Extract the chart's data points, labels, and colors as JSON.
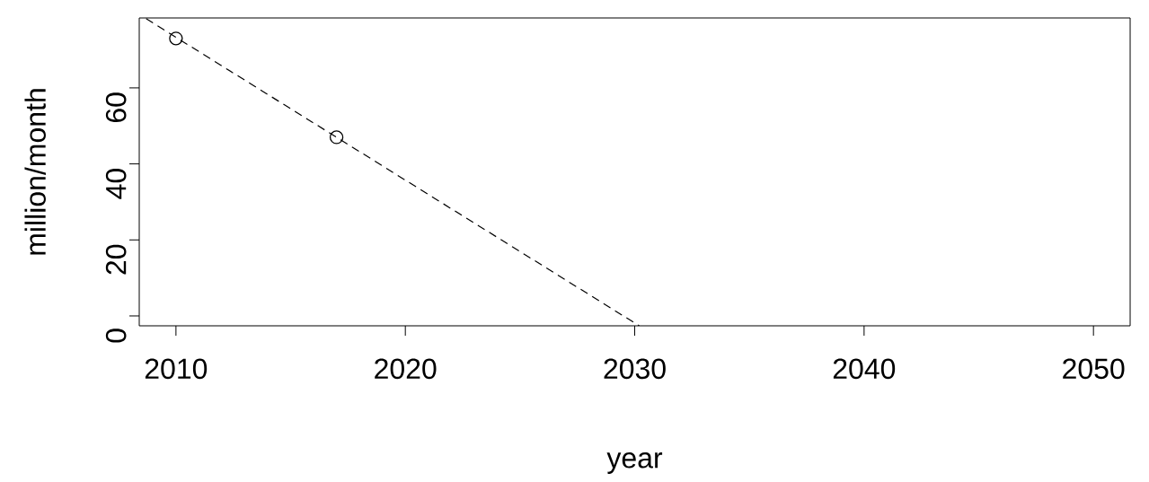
{
  "chart_data": {
    "type": "scatter",
    "xlabel": "year",
    "ylabel": "million/month",
    "series": [
      {
        "x": [
          2010,
          2017
        ],
        "values": [
          73,
          47
        ],
        "marker": "circle",
        "color": "#000000"
      },
      {
        "type": "line",
        "x": [
          2008.7,
          2030.2
        ],
        "values": [
          78.2,
          -2.6
        ],
        "line_style": "dashed",
        "marker": "none",
        "color": "#000000"
      }
    ],
    "xlim": [
      2008.4,
      2051.6
    ],
    "ylim": [
      -2.6,
      78.4
    ],
    "xticks": [
      2010,
      2020,
      2030,
      2040,
      2050
    ],
    "yticks": [
      0,
      20,
      40,
      60
    ],
    "grid": false
  }
}
